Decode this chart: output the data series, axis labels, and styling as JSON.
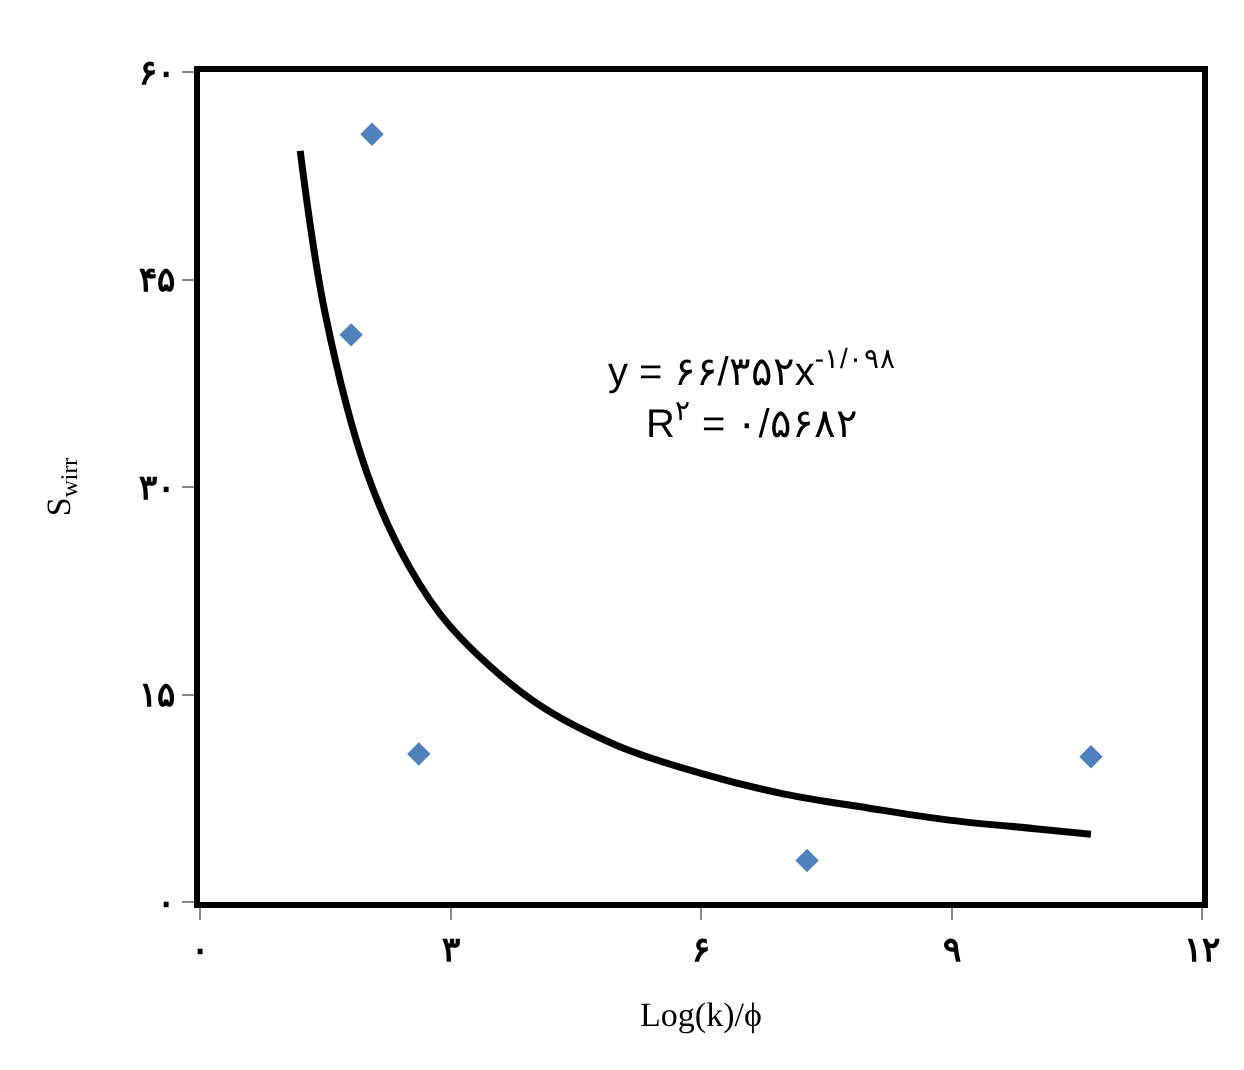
{
  "chart_data": {
    "type": "scatter",
    "xlabel": "Log(k)/ϕ",
    "ylabel": "S$_{wirr}$",
    "xlim": [
      0,
      12
    ],
    "xticks": [
      {
        "value": 0,
        "label": "۰"
      },
      {
        "value": 3,
        "label": "۳"
      },
      {
        "value": 6,
        "label": "۶"
      },
      {
        "value": 9,
        "label": "۹"
      },
      {
        "value": 12,
        "label": "۱۲"
      }
    ],
    "ylim": [
      0,
      60
    ],
    "yticks": [
      {
        "value": 0,
        "label": "۰"
      },
      {
        "value": 15,
        "label": "۱۵"
      },
      {
        "value": 30,
        "label": "۳۰"
      },
      {
        "value": 45,
        "label": "۴۵"
      },
      {
        "value": 60,
        "label": "۶۰"
      }
    ],
    "marker": "diamond",
    "series": [
      {
        "color": "#4f81bd",
        "x": [
          2.06,
          1.81,
          2.62,
          7.27,
          10.67
        ],
        "values": [
          55.5,
          41.0,
          10.7,
          3.0,
          10.5
        ]
      },
      {
        "type": "line",
        "color": "#000000",
        "marker": "none",
        "x": [
          1.2,
          1.5,
          2,
          2.5,
          3,
          4,
          5,
          6,
          7,
          8,
          9,
          10,
          10.67
        ],
        "values": [
          54.3,
          42.5,
          31.0,
          24.3,
          19.9,
          14.5,
          11.3,
          9.3,
          7.8,
          6.8,
          5.9,
          5.3,
          4.9
        ]
      }
    ],
    "annotations": [
      "y = ۶۶/۳۵۲x$^{-۱/۰۹۸}$",
      "R$^{۲}$ = ۰/۵۶۸۲"
    ]
  }
}
